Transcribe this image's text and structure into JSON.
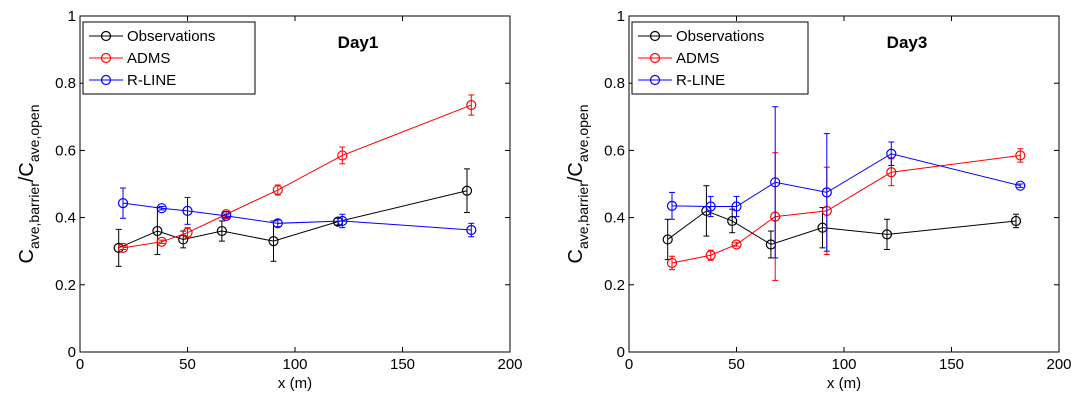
{
  "chart_data": [
    {
      "type": "line",
      "title": "Day1",
      "xlabel": "x (m)",
      "ylabel_parts": {
        "c": "C",
        "sub1": "ave,barrier",
        "sep": "/C",
        "sub2": "ave,open"
      },
      "xlim": [
        0,
        200
      ],
      "ylim": [
        0,
        1
      ],
      "xticks": [
        "0",
        "50",
        "100",
        "150",
        "200"
      ],
      "yticks": [
        "0",
        "0.2",
        "0.4",
        "0.6",
        "0.8",
        "1"
      ],
      "legend_position": "top-left",
      "series": [
        {
          "name": "Observations",
          "color": "#000000",
          "points": [
            {
              "x": 18,
              "y": 0.31,
              "err": 0.055
            },
            {
              "x": 36,
              "y": 0.36,
              "err": 0.07
            },
            {
              "x": 48,
              "y": 0.335,
              "err": 0.025
            },
            {
              "x": 66,
              "y": 0.36,
              "err": 0.03
            },
            {
              "x": 90,
              "y": 0.33,
              "err": 0.06
            },
            {
              "x": 120,
              "y": 0.388,
              "err": 0.01
            },
            {
              "x": 180,
              "y": 0.48,
              "err": 0.065
            }
          ]
        },
        {
          "name": "ADMS",
          "color": "#ff0000",
          "points": [
            {
              "x": 20,
              "y": 0.31,
              "err": 0.005
            },
            {
              "x": 38,
              "y": 0.328,
              "err": 0.005
            },
            {
              "x": 50,
              "y": 0.355,
              "err": 0.015
            },
            {
              "x": 68,
              "y": 0.41,
              "err": 0.008
            },
            {
              "x": 92,
              "y": 0.482,
              "err": 0.015
            },
            {
              "x": 122,
              "y": 0.585,
              "err": 0.025
            },
            {
              "x": 182,
              "y": 0.735,
              "err": 0.03
            }
          ]
        },
        {
          "name": "R-LINE",
          "color": "#0000ff",
          "points": [
            {
              "x": 20,
              "y": 0.443,
              "err": 0.045
            },
            {
              "x": 38,
              "y": 0.428,
              "err": 0.005
            },
            {
              "x": 50,
              "y": 0.42,
              "err": 0.04
            },
            {
              "x": 68,
              "y": 0.405,
              "err": 0.005
            },
            {
              "x": 92,
              "y": 0.383,
              "err": 0.01
            },
            {
              "x": 122,
              "y": 0.39,
              "err": 0.02
            },
            {
              "x": 182,
              "y": 0.363,
              "err": 0.02
            }
          ]
        }
      ]
    },
    {
      "type": "line",
      "title": "Day3",
      "xlabel": "x (m)",
      "ylabel_parts": {
        "c": "C",
        "sub1": "ave,barrier",
        "sep": "/C",
        "sub2": "ave,open"
      },
      "xlim": [
        0,
        200
      ],
      "ylim": [
        0,
        1
      ],
      "xticks": [
        "0",
        "50",
        "100",
        "150",
        "200"
      ],
      "yticks": [
        "0",
        "0.2",
        "0.4",
        "0.6",
        "0.8",
        "1"
      ],
      "legend_position": "top-left",
      "series": [
        {
          "name": "Observations",
          "color": "#000000",
          "points": [
            {
              "x": 18,
              "y": 0.335,
              "err": 0.06
            },
            {
              "x": 36,
              "y": 0.42,
              "err": 0.075
            },
            {
              "x": 48,
              "y": 0.39,
              "err": 0.035
            },
            {
              "x": 66,
              "y": 0.32,
              "err": 0.04
            },
            {
              "x": 90,
              "y": 0.37,
              "err": 0.06
            },
            {
              "x": 120,
              "y": 0.35,
              "err": 0.045
            },
            {
              "x": 180,
              "y": 0.39,
              "err": 0.02
            }
          ]
        },
        {
          "name": "ADMS",
          "color": "#ff0000",
          "points": [
            {
              "x": 20,
              "y": 0.265,
              "err": 0.02
            },
            {
              "x": 38,
              "y": 0.288,
              "err": 0.015
            },
            {
              "x": 50,
              "y": 0.32,
              "err": 0.005
            },
            {
              "x": 68,
              "y": 0.403,
              "err": 0.19
            },
            {
              "x": 92,
              "y": 0.42,
              "err": 0.13
            },
            {
              "x": 122,
              "y": 0.535,
              "err": 0.04
            },
            {
              "x": 182,
              "y": 0.585,
              "err": 0.02
            }
          ]
        },
        {
          "name": "R-LINE",
          "color": "#0000ff",
          "points": [
            {
              "x": 20,
              "y": 0.435,
              "err": 0.04
            },
            {
              "x": 38,
              "y": 0.433,
              "err": 0.03
            },
            {
              "x": 50,
              "y": 0.433,
              "err": 0.03
            },
            {
              "x": 68,
              "y": 0.505,
              "err": 0.225
            },
            {
              "x": 92,
              "y": 0.475,
              "err": 0.175
            },
            {
              "x": 122,
              "y": 0.59,
              "err": 0.035
            },
            {
              "x": 182,
              "y": 0.495,
              "err": 0.005
            }
          ]
        }
      ]
    }
  ]
}
